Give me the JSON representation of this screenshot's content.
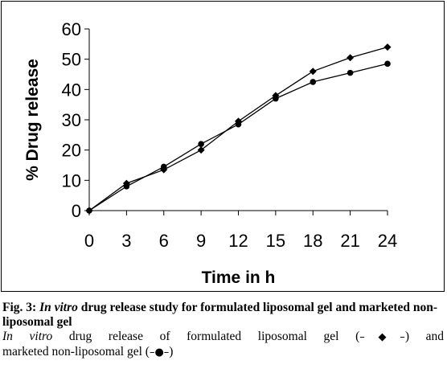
{
  "chart_data": {
    "type": "line",
    "x": [
      0,
      3,
      6,
      9,
      12,
      15,
      18,
      21,
      24
    ],
    "series": [
      {
        "marker": "diamond",
        "values": [
          0,
          9,
          13.5,
          20,
          29.5,
          38,
          46,
          50.5,
          54
        ]
      },
      {
        "marker": "circle",
        "values": [
          0,
          8,
          14.5,
          22,
          28.5,
          37,
          42.5,
          45.5,
          48.5
        ]
      }
    ],
    "title": "",
    "xlabel": "Time in h",
    "ylabel": "% Drug release",
    "xticks": [
      "0",
      "3",
      "6",
      "9",
      "12",
      "15",
      "18",
      "21",
      "24"
    ],
    "yticks": [
      "0",
      "10",
      "20",
      "30",
      "40",
      "50",
      "60"
    ],
    "xlim": [
      0,
      24
    ],
    "ylim": [
      0,
      60
    ],
    "grid": false,
    "line_color": "#000000"
  },
  "caption": {
    "fig_label": "Fig. 3:",
    "title_italic": "In vitro",
    "title_rest": "drug release study for formulated liposomal gel and marketed non-liposomal gel",
    "desc_italic": "In vitro",
    "desc_a": "drug release of formulated liposomal gel (",
    "desc_sym1": "–◆–",
    "desc_b": ") and",
    "desc_c": "marketed non-liposomal gel (",
    "desc_sym2": "–●–",
    "desc_d": ")"
  }
}
